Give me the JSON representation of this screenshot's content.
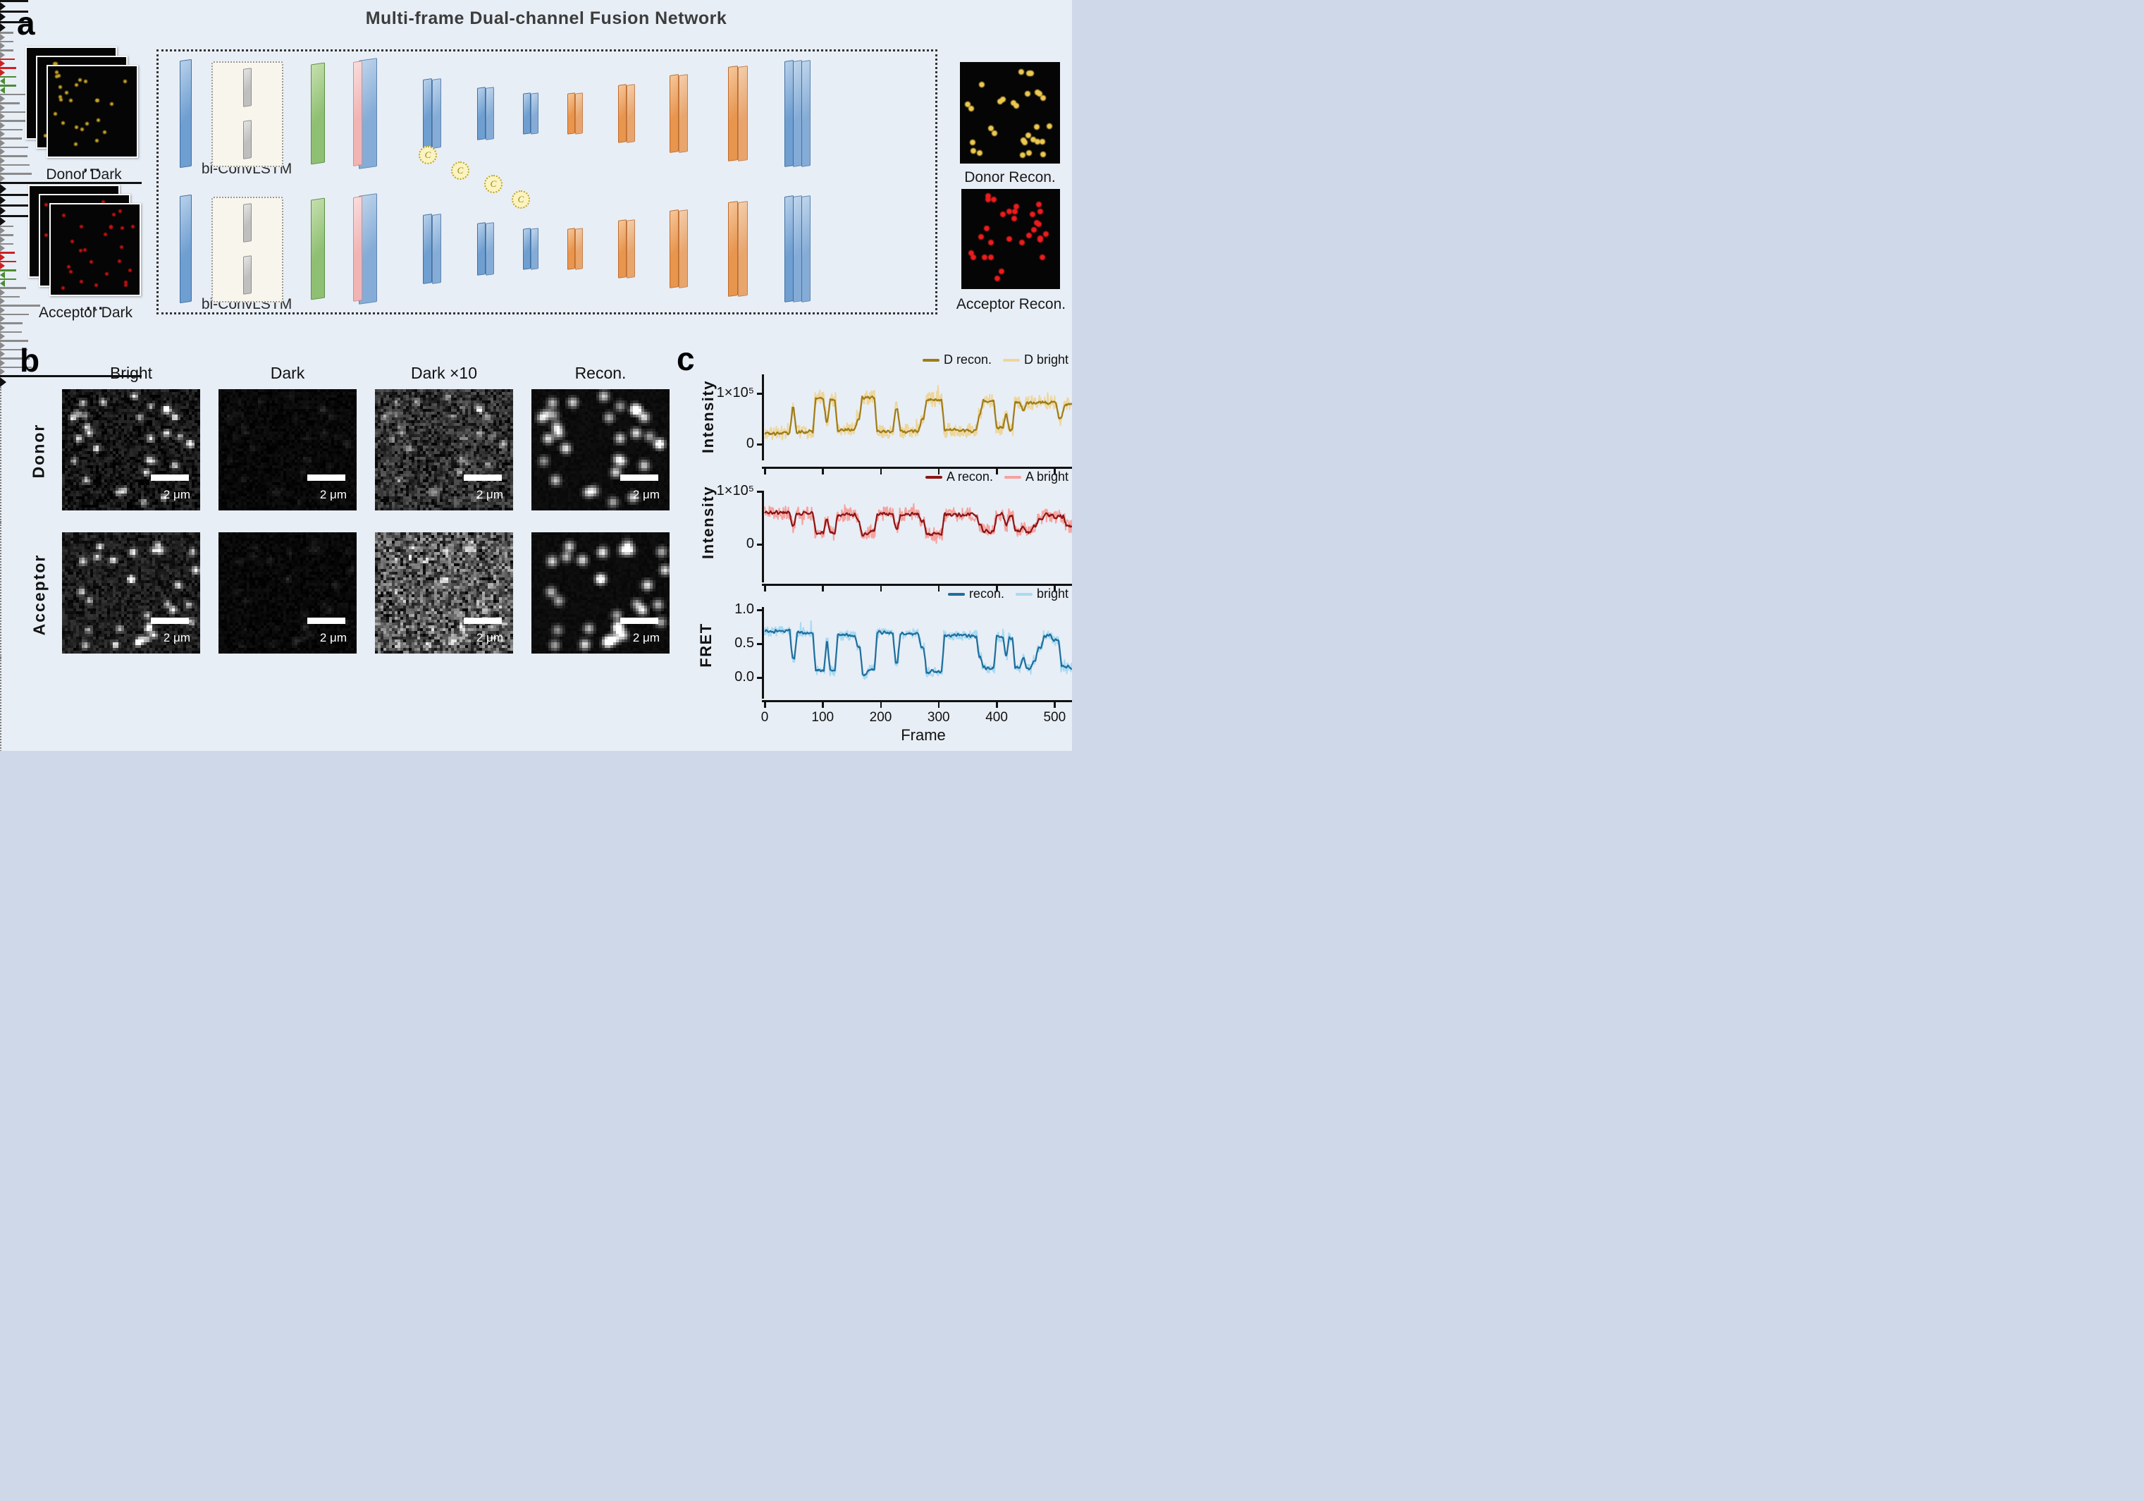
{
  "panel_a": {
    "label": "a",
    "title": "Multi-frame Dual-channel Fusion Network",
    "lstm_label": "bi-ConvLSTM",
    "concat_symbol": "C",
    "ellipsis": "...",
    "inputs": [
      {
        "label": "Donor Dark",
        "dot_color": "#c9a227"
      },
      {
        "label": "Acceptor Dark",
        "dot_color": "#c41111"
      }
    ],
    "outputs": [
      {
        "label": "Donor Recon.",
        "dot_color": "#eec94f"
      },
      {
        "label": "Acceptor Recon.",
        "dot_color": "#ee1c1c"
      }
    ],
    "colors": {
      "encoder_block": "#6f9ed0",
      "decoder_block": "#e8954e",
      "input_conv": "#8fbf72",
      "residual": "#f2b3b3",
      "lstm_cell": "#bfbfbf",
      "concat_node": "#fbf3c0"
    }
  },
  "panel_b": {
    "label": "b",
    "columns": [
      "Bright",
      "Dark",
      "Dark ×10",
      "Recon."
    ],
    "rows": [
      "Donor",
      "Acceptor"
    ],
    "scale_bar": "2 μm"
  },
  "panel_c": {
    "label": "c",
    "xlabel": "Frame"
  },
  "chart_data": [
    {
      "type": "line",
      "ylabel": "Intensity",
      "xlim": [
        0,
        530
      ],
      "ylim": [
        0,
        145000
      ],
      "value_unit": 100000,
      "yticks": [
        {
          "v": 100000,
          "label": "1×10⁵"
        },
        {
          "v": 0,
          "label": "0"
        }
      ],
      "xticks": [
        0,
        100,
        200,
        300,
        400,
        500
      ],
      "xtick_labels_visible": false,
      "grid": false,
      "legend_position": "top-right",
      "series": [
        {
          "name": "D recon.",
          "color": "#9e7c18",
          "role": "recon"
        },
        {
          "name": "D bright",
          "color": "#eed69b",
          "role": "bright"
        }
      ],
      "segments_unit_1e5": [
        [
          0,
          46,
          0.22
        ],
        [
          46,
          53,
          0.7
        ],
        [
          53,
          86,
          0.24
        ],
        [
          86,
          104,
          0.9
        ],
        [
          104,
          111,
          0.45
        ],
        [
          111,
          124,
          0.88
        ],
        [
          124,
          158,
          0.28
        ],
        [
          158,
          166,
          0.5
        ],
        [
          166,
          192,
          0.92
        ],
        [
          192,
          224,
          0.24
        ],
        [
          224,
          232,
          0.72
        ],
        [
          232,
          268,
          0.25
        ],
        [
          268,
          277,
          0.48
        ],
        [
          277,
          308,
          0.88
        ],
        [
          308,
          368,
          0.27
        ],
        [
          368,
          375,
          0.6
        ],
        [
          375,
          398,
          0.85
        ],
        [
          398,
          414,
          0.32
        ],
        [
          414,
          420,
          0.6
        ],
        [
          420,
          430,
          0.3
        ],
        [
          430,
          443,
          0.82
        ],
        [
          443,
          450,
          0.66
        ],
        [
          450,
          505,
          0.82
        ],
        [
          505,
          515,
          0.5
        ],
        [
          515,
          530,
          0.78
        ]
      ]
    },
    {
      "type": "line",
      "ylabel": "Intensity",
      "xlim": [
        0,
        530
      ],
      "ylim": [
        0,
        110000
      ],
      "value_unit": 100000,
      "yticks": [
        {
          "v": 100000,
          "label": "1×10⁵"
        },
        {
          "v": 0,
          "label": "0"
        }
      ],
      "xticks": [
        0,
        100,
        200,
        300,
        400,
        500
      ],
      "xtick_labels_visible": false,
      "grid": false,
      "legend_position": "top-right",
      "series": [
        {
          "name": "A recon.",
          "color": "#8c1515",
          "role": "recon"
        },
        {
          "name": "A bright",
          "color": "#f6a29e",
          "role": "bright"
        }
      ],
      "segments_unit_1e5": [
        [
          0,
          46,
          0.6
        ],
        [
          46,
          53,
          0.35
        ],
        [
          53,
          86,
          0.58
        ],
        [
          86,
          104,
          0.22
        ],
        [
          104,
          111,
          0.48
        ],
        [
          111,
          124,
          0.21
        ],
        [
          124,
          158,
          0.56
        ],
        [
          158,
          166,
          0.44
        ],
        [
          166,
          178,
          0.18
        ],
        [
          178,
          192,
          0.24
        ],
        [
          192,
          224,
          0.58
        ],
        [
          224,
          232,
          0.3
        ],
        [
          232,
          268,
          0.57
        ],
        [
          268,
          277,
          0.44
        ],
        [
          277,
          308,
          0.2
        ],
        [
          308,
          368,
          0.56
        ],
        [
          368,
          375,
          0.36
        ],
        [
          375,
          398,
          0.25
        ],
        [
          398,
          414,
          0.55
        ],
        [
          414,
          420,
          0.37
        ],
        [
          420,
          430,
          0.55
        ],
        [
          430,
          443,
          0.26
        ],
        [
          443,
          450,
          0.34
        ],
        [
          450,
          462,
          0.24
        ],
        [
          462,
          470,
          0.32
        ],
        [
          470,
          480,
          0.45
        ],
        [
          480,
          497,
          0.55
        ],
        [
          497,
          518,
          0.52
        ],
        [
          518,
          530,
          0.34
        ]
      ]
    },
    {
      "type": "line",
      "ylabel": "FRET",
      "xlim": [
        0,
        530
      ],
      "ylim": [
        -0.05,
        1.05
      ],
      "value_unit": 1,
      "yticks": [
        {
          "v": 1.0,
          "label": "1.0"
        },
        {
          "v": 0.5,
          "label": "0.5"
        },
        {
          "v": 0.0,
          "label": "0.0"
        }
      ],
      "xticks": [
        0,
        100,
        200,
        300,
        400,
        500
      ],
      "xtick_labels_visible": true,
      "grid": false,
      "legend_position": "top-right",
      "series": [
        {
          "name": "recon.",
          "color": "#1f6e9c",
          "role": "recon"
        },
        {
          "name": "bright",
          "color": "#a8daf2",
          "role": "bright"
        }
      ],
      "segments": [
        [
          0,
          46,
          0.68
        ],
        [
          46,
          54,
          0.28
        ],
        [
          54,
          86,
          0.66
        ],
        [
          86,
          105,
          0.1
        ],
        [
          105,
          111,
          0.52
        ],
        [
          111,
          124,
          0.1
        ],
        [
          124,
          158,
          0.62
        ],
        [
          158,
          167,
          0.45
        ],
        [
          167,
          178,
          0.05
        ],
        [
          178,
          192,
          0.12
        ],
        [
          192,
          224,
          0.66
        ],
        [
          224,
          232,
          0.22
        ],
        [
          232,
          268,
          0.65
        ],
        [
          268,
          277,
          0.45
        ],
        [
          277,
          308,
          0.08
        ],
        [
          308,
          368,
          0.62
        ],
        [
          368,
          375,
          0.3
        ],
        [
          375,
          398,
          0.14
        ],
        [
          398,
          414,
          0.6
        ],
        [
          414,
          420,
          0.32
        ],
        [
          420,
          430,
          0.6
        ],
        [
          430,
          443,
          0.15
        ],
        [
          443,
          450,
          0.28
        ],
        [
          450,
          462,
          0.13
        ],
        [
          462,
          470,
          0.25
        ],
        [
          470,
          480,
          0.45
        ],
        [
          480,
          497,
          0.62
        ],
        [
          497,
          510,
          0.55
        ],
        [
          510,
          530,
          0.15
        ]
      ]
    }
  ]
}
